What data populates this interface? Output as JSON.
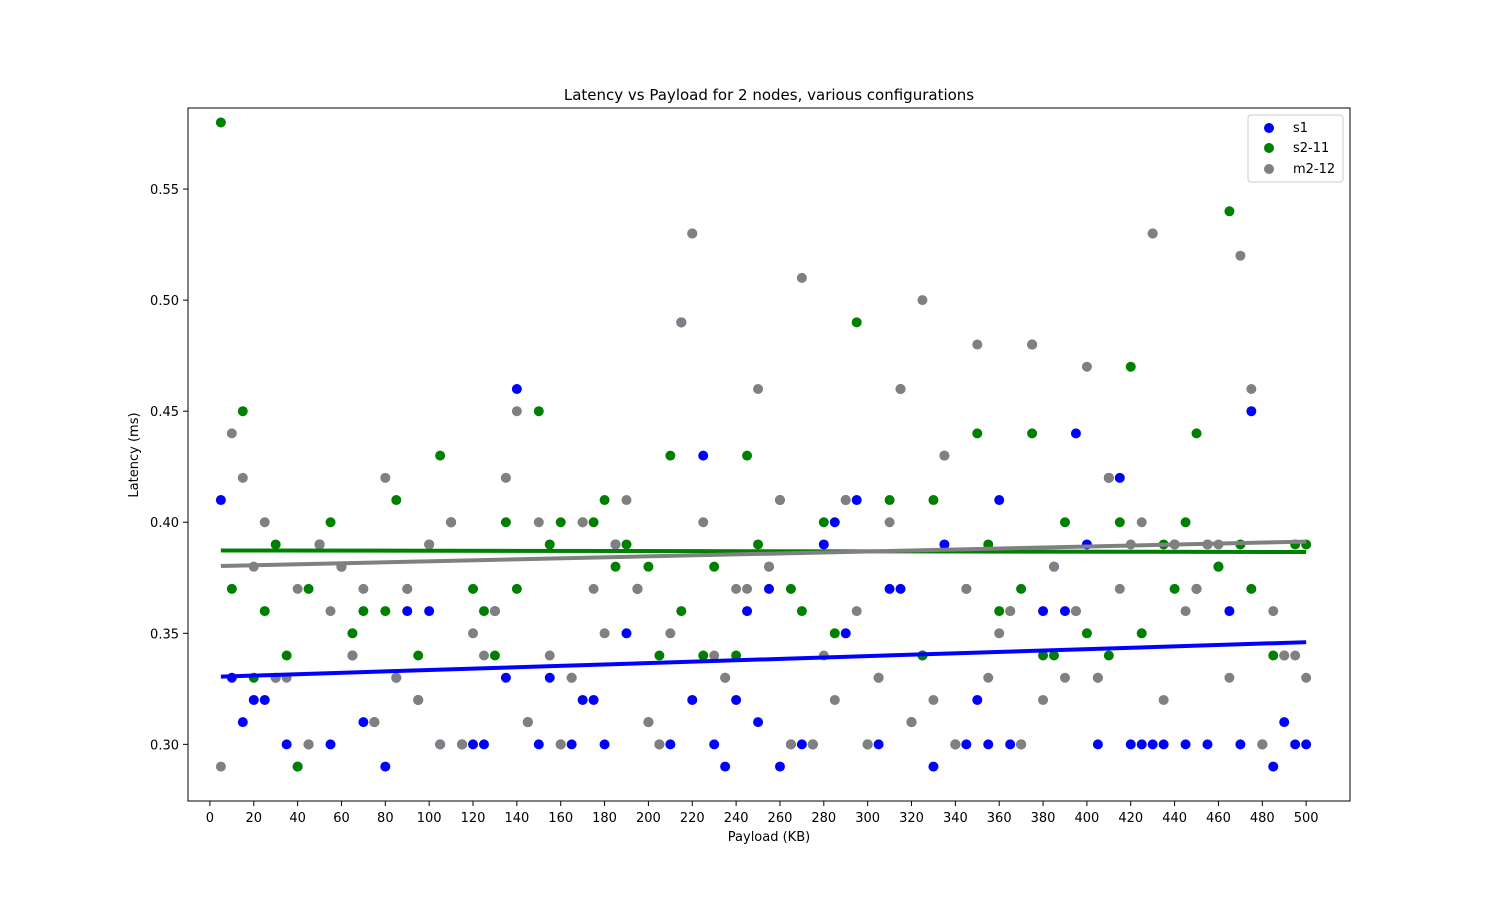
{
  "chart_data": {
    "type": "scatter",
    "title": "Latency vs Payload for 2 nodes, various configurations",
    "xlabel": "Payload (KB)",
    "ylabel": "Latency (ms)",
    "xlim": [
      -10,
      520
    ],
    "ylim": [
      0.2745,
      0.5865
    ],
    "xticks": [
      0,
      20,
      40,
      60,
      80,
      100,
      120,
      140,
      160,
      180,
      200,
      220,
      240,
      260,
      280,
      300,
      320,
      340,
      360,
      380,
      400,
      420,
      440,
      460,
      480,
      500
    ],
    "yticks": [
      0.3,
      0.35,
      0.4,
      0.45,
      0.5,
      0.55
    ],
    "xtick_labels": [
      "0",
      "20",
      "40",
      "60",
      "80",
      "100",
      "120",
      "140",
      "160",
      "180",
      "200",
      "220",
      "240",
      "260",
      "280",
      "300",
      "320",
      "340",
      "360",
      "380",
      "400",
      "420",
      "440",
      "460",
      "480",
      "500"
    ],
    "ytick_labels": [
      "0.30",
      "0.35",
      "0.40",
      "0.45",
      "0.50",
      "0.55"
    ],
    "grid": false,
    "legend_position": "top-right",
    "x": [
      5,
      10,
      15,
      20,
      25,
      30,
      35,
      40,
      45,
      50,
      55,
      60,
      65,
      70,
      75,
      80,
      85,
      90,
      95,
      100,
      105,
      110,
      115,
      120,
      125,
      130,
      135,
      140,
      145,
      150,
      155,
      160,
      165,
      170,
      175,
      180,
      185,
      190,
      195,
      200,
      205,
      210,
      215,
      220,
      225,
      230,
      235,
      240,
      245,
      250,
      255,
      260,
      265,
      270,
      275,
      280,
      285,
      290,
      295,
      300,
      305,
      310,
      315,
      320,
      325,
      330,
      335,
      340,
      345,
      350,
      355,
      360,
      365,
      370,
      375,
      380,
      385,
      390,
      395,
      400,
      405,
      410,
      415,
      420,
      425,
      430,
      435,
      440,
      445,
      450,
      455,
      460,
      465,
      470,
      475,
      480,
      485,
      490,
      495,
      500
    ],
    "series": [
      {
        "name": "s1",
        "color": "#0000ff",
        "values": [
          0.41,
          0.33,
          0.31,
          0.32,
          0.32,
          0.33,
          0.3,
          0.29,
          0.3,
          0.39,
          0.3,
          0.38,
          0.34,
          0.31,
          0.31,
          0.29,
          0.33,
          0.36,
          0.32,
          0.36,
          0.3,
          0.4,
          0.3,
          0.3,
          0.3,
          0.36,
          0.33,
          0.46,
          0.31,
          0.3,
          0.33,
          0.3,
          0.3,
          0.32,
          0.32,
          0.3,
          0.39,
          0.35,
          0.37,
          0.31,
          0.3,
          0.3,
          0.49,
          0.32,
          0.43,
          0.3,
          0.29,
          0.32,
          0.36,
          0.31,
          0.37,
          0.29,
          0.3,
          0.3,
          0.3,
          0.39,
          0.4,
          0.35,
          0.41,
          0.3,
          0.3,
          0.37,
          0.37,
          0.31,
          0.34,
          0.29,
          0.39,
          0.3,
          0.3,
          0.32,
          0.3,
          0.41,
          0.3,
          0.3,
          0.48,
          0.36,
          0.38,
          0.36,
          0.44,
          0.39,
          0.3,
          0.42,
          0.42,
          0.3,
          0.3,
          0.3,
          0.3,
          0.39,
          0.3,
          0.37,
          0.3,
          0.38,
          0.36,
          0.3,
          0.45,
          0.3,
          0.29,
          0.31,
          0.3,
          0.3
        ],
        "trend": [
          0.3305,
          0.346
        ]
      },
      {
        "name": "s2-11",
        "color": "#008000",
        "values": [
          0.58,
          0.37,
          0.45,
          0.33,
          0.36,
          0.39,
          0.34,
          0.29,
          0.37,
          0.39,
          0.4,
          0.38,
          0.35,
          0.36,
          0.31,
          0.36,
          0.41,
          0.37,
          0.34,
          0.39,
          0.43,
          0.4,
          0.3,
          0.37,
          0.36,
          0.34,
          0.4,
          0.37,
          0.31,
          0.45,
          0.39,
          0.4,
          0.33,
          0.4,
          0.4,
          0.41,
          0.38,
          0.39,
          0.37,
          0.38,
          0.34,
          0.43,
          0.36,
          0.53,
          0.34,
          0.38,
          0.33,
          0.34,
          0.43,
          0.39,
          0.38,
          0.41,
          0.37,
          0.36,
          0.3,
          0.4,
          0.35,
          0.41,
          0.49,
          0.3,
          0.33,
          0.41,
          0.46,
          0.31,
          0.34,
          0.41,
          0.43,
          0.3,
          0.37,
          0.44,
          0.39,
          0.36,
          0.36,
          0.37,
          0.44,
          0.34,
          0.34,
          0.4,
          0.36,
          0.35,
          0.33,
          0.34,
          0.4,
          0.47,
          0.35,
          0.53,
          0.39,
          0.37,
          0.4,
          0.44,
          0.39,
          0.38,
          0.54,
          0.39,
          0.37,
          0.3,
          0.34,
          0.34,
          0.39,
          0.39
        ],
        "trend": [
          0.3873,
          0.3866
        ]
      },
      {
        "name": "m2-12",
        "color": "#808080",
        "values": [
          0.29,
          0.44,
          0.42,
          0.38,
          0.4,
          0.33,
          0.33,
          0.37,
          0.3,
          0.39,
          0.36,
          0.38,
          0.34,
          0.37,
          0.31,
          0.42,
          0.33,
          0.37,
          0.32,
          0.39,
          0.3,
          0.4,
          0.3,
          0.35,
          0.34,
          0.36,
          0.42,
          0.45,
          0.31,
          0.4,
          0.34,
          0.3,
          0.33,
          0.4,
          0.37,
          0.35,
          0.39,
          0.41,
          0.37,
          0.31,
          0.3,
          0.35,
          0.49,
          0.53,
          0.4,
          0.34,
          0.33,
          0.37,
          0.37,
          0.46,
          0.38,
          0.41,
          0.3,
          0.51,
          0.3,
          0.34,
          0.32,
          0.41,
          0.36,
          0.3,
          0.33,
          0.4,
          0.46,
          0.31,
          0.5,
          0.32,
          0.43,
          0.3,
          0.37,
          0.48,
          0.33,
          0.35,
          0.36,
          0.3,
          0.48,
          0.32,
          0.38,
          0.33,
          0.36,
          0.47,
          0.33,
          0.42,
          0.37,
          0.39,
          0.4,
          0.53,
          0.32,
          0.39,
          0.36,
          0.37,
          0.39,
          0.39,
          0.33,
          0.52,
          0.46,
          0.3,
          0.36,
          0.34,
          0.34,
          0.33
        ],
        "trend": [
          0.3803,
          0.3913
        ]
      }
    ]
  }
}
